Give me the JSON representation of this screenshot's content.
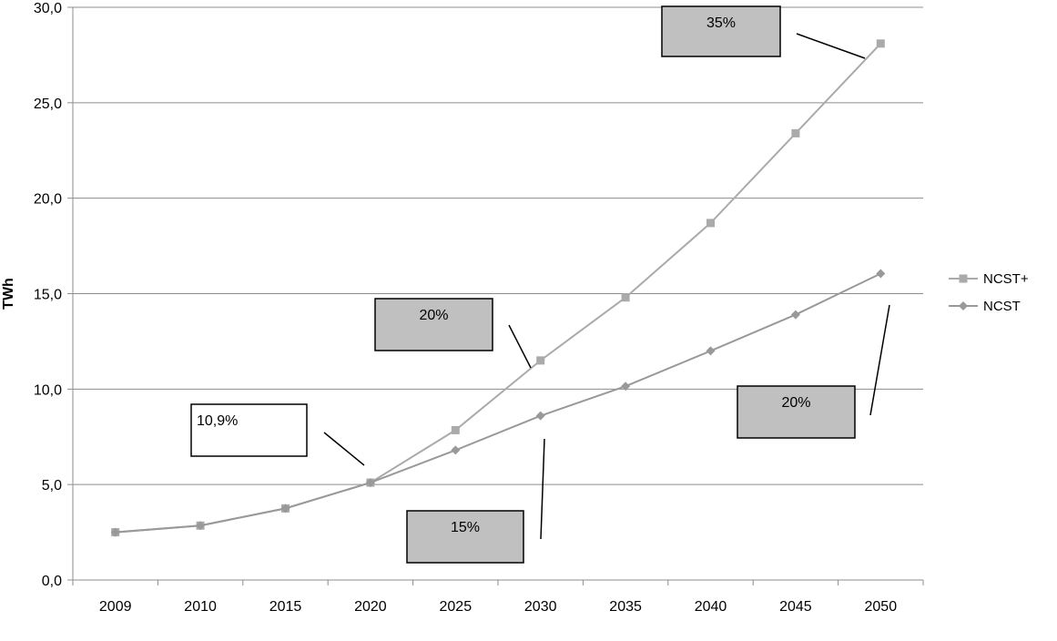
{
  "chart_data": {
    "type": "line",
    "title": "",
    "xlabel": "",
    "ylabel": "TWh",
    "categories": [
      "2009",
      "2010",
      "2015",
      "2020",
      "2025",
      "2030",
      "2035",
      "2040",
      "2045",
      "2050"
    ],
    "ylim": [
      0,
      30
    ],
    "yticks": [
      "0,0",
      "5,0",
      "10,0",
      "15,0",
      "20,0",
      "25,0",
      "30,0"
    ],
    "grid": true,
    "legend_position": "right",
    "series": [
      {
        "name": "NCST+",
        "marker": "square",
        "color": "#aaaaaa",
        "values": [
          2.5,
          2.85,
          3.75,
          5.1,
          7.85,
          11.5,
          14.8,
          18.7,
          23.4,
          28.1
        ]
      },
      {
        "name": "NCST",
        "marker": "diamond",
        "color": "#999999",
        "values": [
          2.5,
          2.85,
          3.75,
          5.1,
          6.8,
          8.6,
          10.15,
          12.0,
          13.9,
          16.05
        ]
      }
    ],
    "annotations": [
      {
        "text": "35%",
        "target_category": "2050",
        "target_value": 27.2,
        "style": "shaded"
      },
      {
        "text": "20%",
        "target_category": "2030",
        "target_value": 11.0,
        "style": "shaded"
      },
      {
        "text": "10,9%",
        "target_category": "2020",
        "target_value": 5.6,
        "style": "plain"
      },
      {
        "text": "15%",
        "target_category": "2030",
        "target_value": 7.4,
        "style": "shaded"
      },
      {
        "text": "20%",
        "target_category": "2050",
        "target_value": 14.4,
        "style": "shaded"
      }
    ]
  }
}
